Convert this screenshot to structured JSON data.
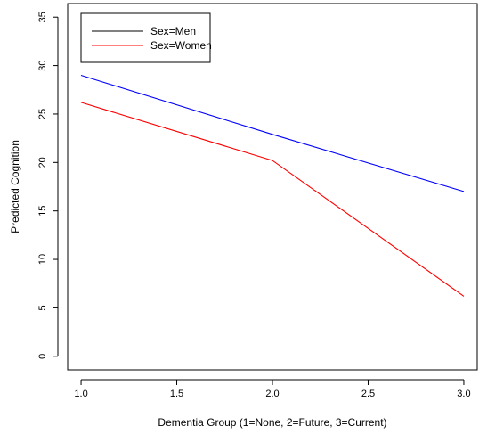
{
  "chart_data": {
    "type": "line",
    "title": "",
    "xlabel": "Dementia Group (1=None, 2=Future, 3=Current)",
    "ylabel": "Predicted Cognition",
    "xlim": [
      0.93,
      3.07
    ],
    "ylim": [
      -1.4,
      36.4
    ],
    "xticks": [
      1.0,
      1.5,
      2.0,
      2.5,
      3.0
    ],
    "xtick_labels": [
      "1.0",
      "1.5",
      "2.0",
      "2.5",
      "3.0"
    ],
    "yticks": [
      0,
      5,
      10,
      15,
      20,
      25,
      30,
      35
    ],
    "ytick_labels": [
      "0",
      "5",
      "10",
      "15",
      "20",
      "25",
      "30",
      "35"
    ],
    "grid": false,
    "legend_position": "top-left",
    "series": [
      {
        "name": "Sex=Men",
        "legend_color": "#000000",
        "line_color": "#0000ff",
        "x": [
          1,
          2,
          3
        ],
        "y": [
          29.0,
          22.9,
          17.0
        ]
      },
      {
        "name": "Sex=Women",
        "legend_color": "#ff0000",
        "line_color": "#ff0000",
        "x": [
          1,
          2,
          3
        ],
        "y": [
          26.2,
          20.2,
          6.2
        ]
      }
    ]
  }
}
